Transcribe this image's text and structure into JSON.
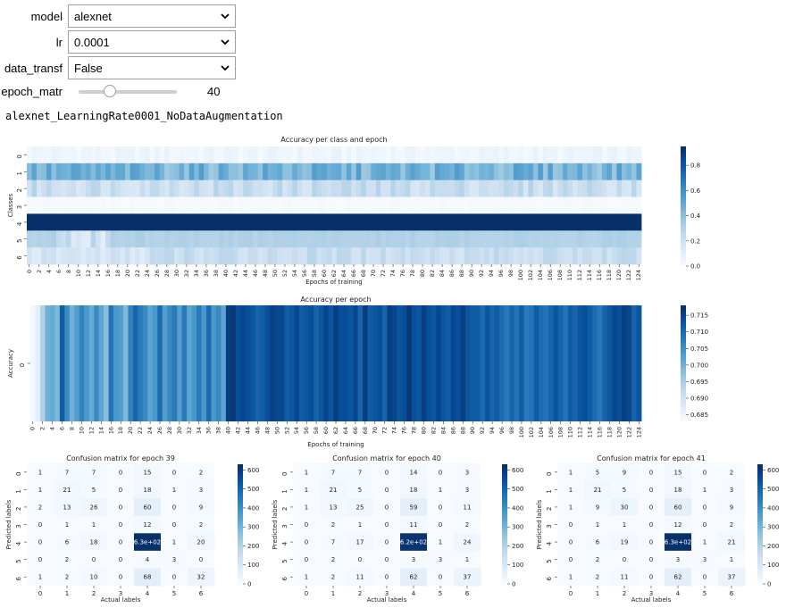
{
  "widgets": {
    "model": {
      "label": "model",
      "value": "alexnet"
    },
    "lr": {
      "label": "lr",
      "value": "0.0001"
    },
    "data_transf": {
      "label": "data_transf",
      "value": "False"
    },
    "epoch_matr": {
      "label": "epoch_matr",
      "value": 40,
      "min": 0,
      "max": 124
    }
  },
  "run_name": "alexnet_LearningRate0001_NoDataAugmentation",
  "chart_data": [
    {
      "type": "heatmap",
      "title": "Accuracy per class and epoch",
      "xlabel": "Epochs of training",
      "ylabel": "Classes",
      "x_tick_labels": [
        "0",
        "2",
        "4",
        "6",
        "8",
        "10",
        "12",
        "14",
        "16",
        "18",
        "20",
        "22",
        "24",
        "26",
        "28",
        "30",
        "32",
        "34",
        "36",
        "38",
        "40",
        "42",
        "44",
        "46",
        "48",
        "50",
        "52",
        "54",
        "56",
        "58",
        "60",
        "62",
        "64",
        "66",
        "68",
        "70",
        "72",
        "74",
        "76",
        "78",
        "80",
        "82",
        "84",
        "86",
        "88",
        "90",
        "92",
        "94",
        "96",
        "98",
        "100",
        "102",
        "104",
        "106",
        "108",
        "110",
        "112",
        "114",
        "116",
        "118",
        "120",
        "122",
        "124"
      ],
      "y_tick_labels": [
        "0",
        "1",
        "2",
        "3",
        "4",
        "5",
        "6"
      ],
      "n_epochs": 125,
      "class_base_values": [
        0.04,
        0.45,
        0.22,
        0.01,
        0.97,
        0.3,
        0.22
      ],
      "class_variation": [
        0.03,
        0.1,
        0.08,
        0.01,
        0.01,
        0.02,
        0.06
      ],
      "colorbar": {
        "min": 0.0,
        "max": 0.95,
        "ticks": [
          "0.0",
          "0.2",
          "0.4",
          "0.6",
          "0.8"
        ]
      }
    },
    {
      "type": "heatmap",
      "title": "Accuracy per epoch",
      "xlabel": "Epochs of training",
      "ylabel": "Accuracy",
      "x_tick_labels": [
        "0",
        "2",
        "4",
        "6",
        "8",
        "10",
        "12",
        "14",
        "16",
        "18",
        "20",
        "22",
        "24",
        "26",
        "28",
        "30",
        "32",
        "34",
        "36",
        "38",
        "40",
        "42",
        "44",
        "46",
        "48",
        "50",
        "52",
        "54",
        "56",
        "58",
        "60",
        "62",
        "64",
        "66",
        "68",
        "70",
        "72",
        "74",
        "76",
        "78",
        "80",
        "82",
        "84",
        "86",
        "88",
        "90",
        "92",
        "94",
        "96",
        "98",
        "100",
        "102",
        "104",
        "106",
        "108",
        "110",
        "112",
        "114",
        "116",
        "118",
        "120",
        "122",
        "124"
      ],
      "y_tick_labels": [
        "0"
      ],
      "values": [
        0.684,
        0.686,
        0.694,
        0.7,
        0.701,
        0.699,
        0.712,
        0.706,
        0.7,
        0.703,
        0.707,
        0.704,
        0.701,
        0.706,
        0.702,
        0.698,
        0.709,
        0.704,
        0.703,
        0.699,
        0.707,
        0.711,
        0.708,
        0.706,
        0.702,
        0.704,
        0.71,
        0.703,
        0.706,
        0.708,
        0.703,
        0.708,
        0.702,
        0.704,
        0.708,
        0.704,
        0.71,
        0.704,
        0.706,
        0.702,
        0.716,
        0.717,
        0.714,
        0.715,
        0.714,
        0.713,
        0.711,
        0.712,
        0.714,
        0.716,
        0.715,
        0.715,
        0.712,
        0.713,
        0.715,
        0.712,
        0.713,
        0.714,
        0.711,
        0.713,
        0.715,
        0.713,
        0.716,
        0.714,
        0.714,
        0.713,
        0.715,
        0.711,
        0.716,
        0.712,
        0.713,
        0.714,
        0.711,
        0.716,
        0.715,
        0.713,
        0.714,
        0.717,
        0.714,
        0.713,
        0.716,
        0.714,
        0.713,
        0.715,
        0.713,
        0.712,
        0.715,
        0.714,
        0.716,
        0.713,
        0.712,
        0.712,
        0.71,
        0.713,
        0.711,
        0.712,
        0.71,
        0.708,
        0.711,
        0.709,
        0.712,
        0.708,
        0.709,
        0.712,
        0.71,
        0.709,
        0.711,
        0.713,
        0.711,
        0.709,
        0.712,
        0.711,
        0.713,
        0.714,
        0.712,
        0.71,
        0.708,
        0.711,
        0.713,
        0.715,
        0.714,
        0.716,
        0.715,
        0.711,
        0.713
      ],
      "colorbar": {
        "min": 0.683,
        "max": 0.718,
        "ticks": [
          "0.685",
          "0.690",
          "0.695",
          "0.700",
          "0.705",
          "0.710",
          "0.715"
        ]
      }
    },
    {
      "type": "heatmap",
      "title": "Confusion matrix for epoch 39",
      "xlabel": "Actual labels",
      "ylabel": "Predicted labels",
      "tick_labels": [
        "0",
        "1",
        "2",
        "3",
        "4",
        "5",
        "6"
      ],
      "cells": [
        [
          "1",
          "7",
          "7",
          "0",
          "15",
          "0",
          "2"
        ],
        [
          "1",
          "21",
          "5",
          "0",
          "18",
          "1",
          "3"
        ],
        [
          "2",
          "13",
          "26",
          "0",
          "60",
          "0",
          "9"
        ],
        [
          "0",
          "1",
          "1",
          "0",
          "12",
          "0",
          "2"
        ],
        [
          "0",
          "6",
          "18",
          "0",
          "6.3e+02",
          "1",
          "20"
        ],
        [
          "0",
          "2",
          "0",
          "0",
          "4",
          "3",
          "0"
        ],
        [
          "1",
          "2",
          "10",
          "0",
          "68",
          "0",
          "32"
        ]
      ],
      "colorbar": {
        "min": 0,
        "max": 630,
        "ticks": [
          "0",
          "100",
          "200",
          "300",
          "400",
          "500",
          "600"
        ]
      }
    },
    {
      "type": "heatmap",
      "title": "Confusion matrix for epoch 40",
      "xlabel": "Actual labels",
      "ylabel": "Predicted labels",
      "tick_labels": [
        "0",
        "1",
        "2",
        "3",
        "4",
        "5",
        "6"
      ],
      "cells": [
        [
          "1",
          "7",
          "7",
          "0",
          "14",
          "0",
          "3"
        ],
        [
          "1",
          "21",
          "5",
          "0",
          "18",
          "1",
          "3"
        ],
        [
          "1",
          "13",
          "25",
          "0",
          "59",
          "0",
          "11"
        ],
        [
          "0",
          "2",
          "1",
          "0",
          "11",
          "0",
          "2"
        ],
        [
          "0",
          "7",
          "17",
          "0",
          "6.2e+02",
          "1",
          "24"
        ],
        [
          "0",
          "2",
          "0",
          "0",
          "3",
          "3",
          "1"
        ],
        [
          "1",
          "2",
          "11",
          "0",
          "62",
          "0",
          "37"
        ]
      ],
      "colorbar": {
        "min": 0,
        "max": 630,
        "ticks": [
          "0",
          "100",
          "200",
          "300",
          "400",
          "500",
          "600"
        ]
      }
    },
    {
      "type": "heatmap",
      "title": "Confusion matrix for epoch 41",
      "xlabel": "Actual labels",
      "ylabel": "Predicted labels",
      "tick_labels": [
        "0",
        "1",
        "2",
        "3",
        "4",
        "5",
        "6"
      ],
      "cells": [
        [
          "1",
          "5",
          "9",
          "0",
          "15",
          "0",
          "2"
        ],
        [
          "1",
          "21",
          "5",
          "0",
          "18",
          "1",
          "3"
        ],
        [
          "1",
          "9",
          "30",
          "0",
          "60",
          "0",
          "9"
        ],
        [
          "0",
          "1",
          "1",
          "0",
          "12",
          "0",
          "2"
        ],
        [
          "0",
          "6",
          "19",
          "0",
          "6.3e+02",
          "1",
          "21"
        ],
        [
          "0",
          "2",
          "0",
          "0",
          "3",
          "3",
          "1"
        ],
        [
          "1",
          "2",
          "11",
          "0",
          "62",
          "0",
          "37"
        ]
      ],
      "colorbar": {
        "min": 0,
        "max": 630,
        "ticks": [
          "0",
          "100",
          "200",
          "300",
          "400",
          "500",
          "600"
        ]
      }
    }
  ]
}
